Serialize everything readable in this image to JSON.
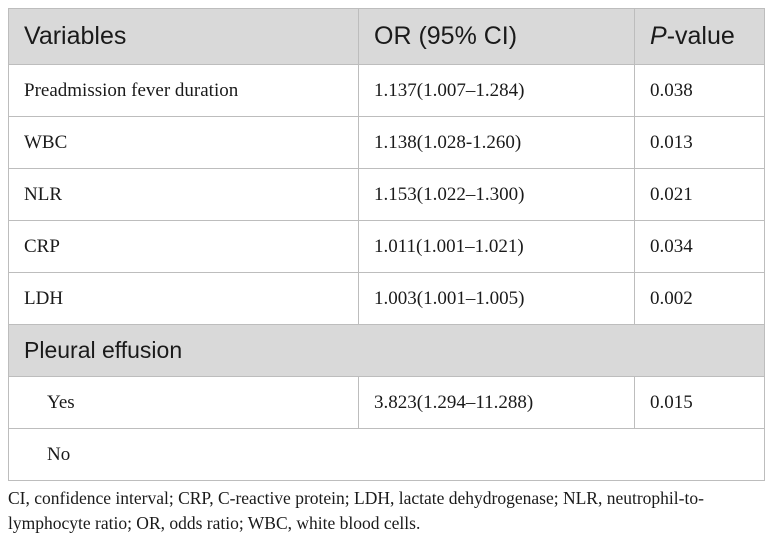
{
  "table": {
    "headers": {
      "variables": "Variables",
      "or": "OR (95% CI)",
      "p_italic": "P",
      "p_rest": "-value"
    },
    "rows": [
      {
        "variable": "Preadmission fever duration",
        "or": "1.137(1.007–1.284)",
        "p": "0.038"
      },
      {
        "variable": "WBC",
        "or": "1.138(1.028-1.260)",
        "p": "0.013"
      },
      {
        "variable": "NLR",
        "or": "1.153(1.022–1.300)",
        "p": "0.021"
      },
      {
        "variable": "CRP",
        "or": "1.011(1.001–1.021)",
        "p": "0.034"
      },
      {
        "variable": "LDH",
        "or": "1.003(1.001–1.005)",
        "p": "0.002"
      }
    ],
    "group": {
      "label": "Pleural effusion",
      "rows": [
        {
          "variable": "Yes",
          "or": "3.823(1.294–11.288)",
          "p": "0.015"
        },
        {
          "variable": "No",
          "or": "",
          "p": ""
        }
      ]
    }
  },
  "footnote": "CI, confidence interval; CRP, C-reactive protein; LDH, lactate dehydrogenase; NLR, neutrophil-to-lymphocyte ratio; OR, odds ratio; WBC, white blood cells."
}
